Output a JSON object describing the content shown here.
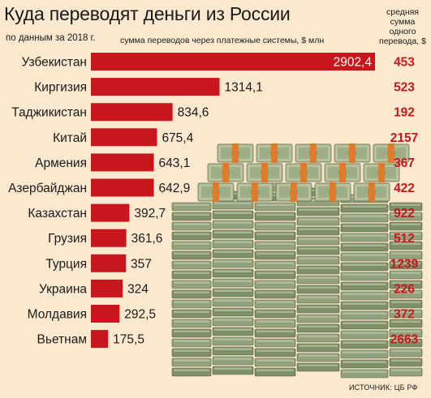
{
  "header": {
    "title": "Куда переводят деньги из России",
    "subtitle": "по данным за 2018 г.",
    "unit_label": "сумма переводов через платежные системы, $ млн",
    "avg_header": [
      "средняя",
      "сумма",
      "одного",
      "перевода, $"
    ]
  },
  "source": "ИСТОЧНИК: ЦБ РФ",
  "colors": {
    "background": "#fbe9cf",
    "bar": "#c8161d",
    "avg_value": "#c8161d",
    "text": "#1a1a1a"
  },
  "illustration": "stacks-of-dollar-bills",
  "chart_data": {
    "type": "bar",
    "orientation": "horizontal",
    "title": "Куда переводят деньги из России",
    "subtitle": "по данным за 2018 г.",
    "xlabel": "сумма переводов через платежные системы, $ млн",
    "ylabel": "",
    "xlim": [
      0,
      2902.4
    ],
    "grid": false,
    "categories": [
      "Узбекистан",
      "Киргизия",
      "Таджикистан",
      "Китай",
      "Армения",
      "Азербайджан",
      "Казахстан",
      "Грузия",
      "Турция",
      "Украина",
      "Молдавия",
      "Вьетнам"
    ],
    "values": [
      2902.4,
      1314.1,
      834.6,
      675.4,
      643.1,
      642.9,
      392.7,
      361.6,
      357,
      324,
      292.5,
      175.5
    ],
    "value_labels": [
      "2902,4",
      "1314,1",
      "834,6",
      "675,4",
      "643,1",
      "642,9",
      "392,7",
      "361,6",
      "357",
      "324",
      "292,5",
      "175,5"
    ],
    "avg_transfer_label": "средняя сумма одного перевода, $",
    "avg_transfer": [
      453,
      523,
      192,
      2157,
      367,
      422,
      922,
      512,
      1239,
      226,
      372,
      2663
    ]
  }
}
